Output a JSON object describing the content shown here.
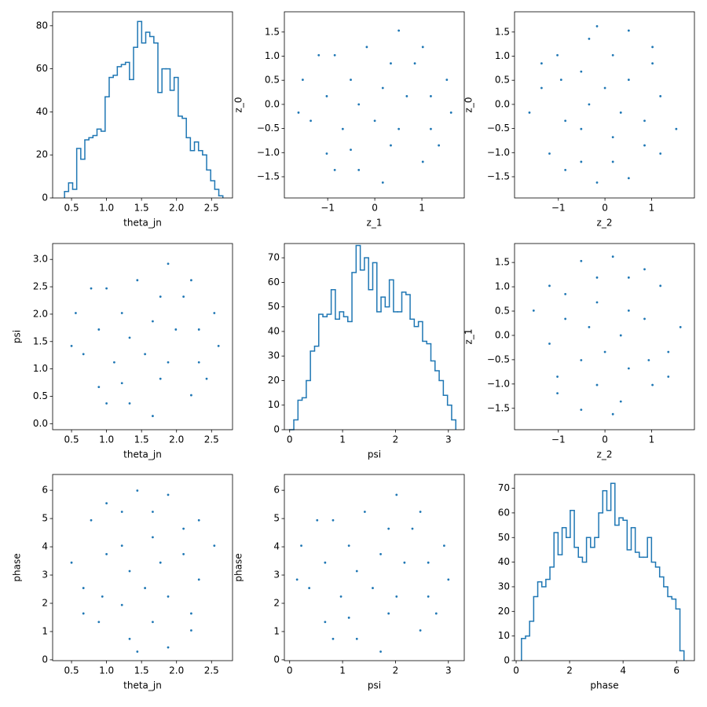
{
  "chart_data": [
    {
      "type": "histogram",
      "xlabel": "theta_jn",
      "color": "#1f77b4",
      "bins": [
        0.4,
        0.458,
        0.516,
        0.574,
        0.632,
        0.69,
        0.748,
        0.806,
        0.864,
        0.922,
        0.98,
        1.038,
        1.096,
        1.154,
        1.212,
        1.27,
        1.328,
        1.386,
        1.444,
        1.502,
        1.56,
        1.618,
        1.676,
        1.734,
        1.792,
        1.85,
        1.908,
        1.966,
        2.024,
        2.082,
        2.14,
        2.198,
        2.256,
        2.314,
        2.372,
        2.43,
        2.488,
        2.546,
        2.604,
        2.662
      ],
      "values": [
        3,
        7,
        4,
        23,
        18,
        27,
        28,
        29,
        32,
        31,
        47,
        56,
        57,
        61,
        62,
        63,
        55,
        70,
        82,
        72,
        77,
        75,
        72,
        49,
        60,
        60,
        50,
        56,
        38,
        37,
        28,
        22,
        26,
        22,
        20,
        13,
        8,
        4,
        1
      ],
      "xlim": [
        0.23,
        2.8
      ],
      "ylim": [
        0,
        86.5
      ],
      "xticks": [
        0.5,
        {
          "value": 1,
          "label": "1.0"
        },
        1.5,
        {
          "value": 2,
          "label": "2.0"
        },
        2.5
      ],
      "yticks": [
        0,
        20,
        40,
        60,
        80
      ]
    },
    {
      "type": "scatter",
      "xlabel": "z_1",
      "ylabel": "z_0",
      "color": "#1f77b4",
      "x": [
        0.17,
        -0.85,
        1.19,
        -0.34,
        1.53,
        -1.36,
        0.51,
        0.85,
        -1.02,
        0.34,
        -0.51,
        1.02,
        -1.53,
        0,
        0.68,
        -0.17,
        1.36,
        -0.68,
        0.17,
        -1.19,
        1.62,
        -1.62,
        0.51,
        -0.34,
        1.02,
        -0.85,
        0.34,
        -1.02,
        1.19,
        -0.51
      ],
      "y": [
        0.34,
        1.02,
        -0.51,
        -1.36,
        0.51,
        -0.34,
        1.53,
        0.85,
        -1.02,
        -0.85,
        0.51,
        -1.19,
        0.51,
        -0.34,
        0.17,
        1.19,
        -0.85,
        -0.51,
        -1.62,
        1.02,
        -0.17,
        -0.17,
        -0.51,
        0,
        1.19,
        -1.36,
        0.85,
        0.17,
        0.17,
        -0.94
      ],
      "xlim": [
        -1.92,
        1.9
      ],
      "ylim": [
        -1.94,
        1.92
      ],
      "xticks": [
        {
          "value": -1,
          "label": "−1"
        },
        0,
        1
      ],
      "yticks": [
        {
          "value": -1.5,
          "label": "−1.5"
        },
        {
          "value": -1,
          "label": "−1.0"
        },
        {
          "value": -0.5,
          "label": "−0.5"
        },
        {
          "value": 0,
          "label": "0.0"
        },
        0.5,
        {
          "value": 1,
          "label": "1.0"
        },
        1.5
      ]
    },
    {
      "type": "scatter",
      "xlabel": "z_2",
      "ylabel": "z_0",
      "color": "#1f77b4",
      "x": [
        0.34,
        1.02,
        -0.51,
        -1.36,
        0.51,
        -0.34,
        1.53,
        0.85,
        -1.02,
        -0.85,
        0.51,
        -1.19,
        0.51,
        -0.34,
        0.17,
        1.19,
        -0.85,
        -0.51,
        -1.62,
        1.02,
        -0.17,
        -0.17,
        -0.51,
        0,
        1.19,
        -1.36,
        0.85,
        0.17,
        0.17,
        -0.94
      ],
      "y": [
        -0.17,
        0.85,
        -1.19,
        0.34,
        -1.53,
        1.36,
        -0.51,
        -0.85,
        1.02,
        -0.34,
        0.51,
        -1.02,
        1.53,
        0,
        -0.68,
        0.17,
        -1.36,
        0.68,
        -0.17,
        1.19,
        -1.62,
        1.62,
        -0.51,
        0.34,
        -1.02,
        0.85,
        -0.34,
        1.02,
        -1.19,
        0.51
      ],
      "xlim": [
        -1.94,
        1.92
      ],
      "ylim": [
        -1.94,
        1.92
      ],
      "xticks": [
        {
          "value": -1,
          "label": "−1"
        },
        0,
        1
      ],
      "yticks": [
        {
          "value": -1.5,
          "label": "−1.5"
        },
        {
          "value": -1,
          "label": "−1.0"
        },
        {
          "value": -0.5,
          "label": "−0.5"
        },
        {
          "value": 0,
          "label": "0.0"
        },
        0.5,
        {
          "value": 1,
          "label": "1.0"
        },
        1.5
      ]
    },
    {
      "type": "scatter",
      "xlabel": "theta_jn",
      "ylabel": "psi",
      "color": "#1f77b4",
      "x": [
        1.66,
        1.0,
        2.32,
        1.33,
        2.54,
        0.67,
        1.88,
        2.1,
        0.89,
        1.77,
        1.22,
        2.21,
        0.56,
        1.55,
        1.99,
        1.44,
        2.43,
        1.11,
        1.66,
        0.78,
        2.6,
        0.5,
        1.88,
        1.33,
        2.21,
        1.0,
        1.77,
        0.89,
        2.32,
        1.22
      ],
      "y": [
        1.87,
        2.47,
        1.12,
        0.37,
        2.02,
        1.27,
        2.92,
        2.32,
        0.67,
        0.82,
        2.02,
        0.52,
        2.02,
        1.27,
        1.72,
        2.62,
        0.82,
        1.12,
        0.14,
        2.47,
        1.42,
        1.42,
        1.12,
        1.57,
        2.62,
        0.37,
        2.32,
        1.72,
        1.72,
        0.74
      ],
      "xlim": [
        0.23,
        2.8
      ],
      "ylim": [
        -0.11,
        3.29
      ],
      "xticks": [
        0.5,
        {
          "value": 1,
          "label": "1.0"
        },
        1.5,
        {
          "value": 2,
          "label": "2.0"
        },
        2.5
      ],
      "yticks": [
        {
          "value": 0,
          "label": "0.0"
        },
        0.5,
        {
          "value": 1,
          "label": "1.0"
        },
        1.5,
        {
          "value": 2,
          "label": "2.0"
        },
        2.5,
        {
          "value": 3,
          "label": "3.0"
        }
      ]
    },
    {
      "type": "histogram",
      "xlabel": "psi",
      "color": "#1f77b4",
      "bins": [
        0,
        0.0785,
        0.157,
        0.2355,
        0.314,
        0.3925,
        0.471,
        0.5495,
        0.628,
        0.7065,
        0.785,
        0.8635,
        0.942,
        1.0205,
        1.099,
        1.1775,
        1.256,
        1.3345,
        1.413,
        1.4915,
        1.57,
        1.6485,
        1.727,
        1.8055,
        1.884,
        1.9625,
        2.041,
        2.1195,
        2.198,
        2.2765,
        2.355,
        2.4335,
        2.512,
        2.5905,
        2.669,
        2.7475,
        2.826,
        2.9045,
        2.983,
        3.0615,
        3.14
      ],
      "values": [
        0,
        4,
        12,
        13,
        20,
        32,
        34,
        47,
        46,
        47,
        57,
        45,
        48,
        46,
        44,
        64,
        75,
        65,
        70,
        57,
        68,
        48,
        54,
        50,
        61,
        48,
        48,
        56,
        55,
        45,
        42,
        44,
        36,
        35,
        28,
        24,
        20,
        14,
        10,
        4
      ],
      "xlim": [
        -0.1,
        3.3
      ],
      "ylim": [
        0,
        75.8
      ],
      "xticks": [
        0,
        1,
        2,
        3
      ],
      "yticks": [
        0,
        10,
        20,
        30,
        40,
        50,
        60,
        70
      ]
    },
    {
      "type": "scatter",
      "xlabel": "z_2",
      "ylabel": "z_1",
      "color": "#1f77b4",
      "x": [
        -0.34,
        -1.02,
        0.51,
        1.36,
        -0.51,
        0.34,
        -1.53,
        -0.85,
        1.02,
        0.85,
        -0.51,
        1.19,
        -0.51,
        0.34,
        -0.17,
        -1.19,
        0.85,
        0.51,
        1.62,
        -1.02,
        0.17,
        0.17,
        0.51,
        0,
        -1.19,
        1.36,
        -0.85,
        -0.17,
        -0.17,
        0.94
      ],
      "y": [
        0.17,
        -0.85,
        1.19,
        -0.34,
        1.53,
        -1.36,
        0.51,
        0.85,
        -1.02,
        0.34,
        -0.51,
        1.02,
        -1.53,
        0,
        0.68,
        -0.17,
        1.36,
        -0.68,
        0.17,
        -1.19,
        1.62,
        -1.62,
        0.51,
        -0.34,
        1.02,
        -0.85,
        0.34,
        -1.02,
        1.19,
        -0.51
      ],
      "xlim": [
        -1.94,
        1.92
      ],
      "ylim": [
        -1.94,
        1.89
      ],
      "xticks": [
        {
          "value": -1,
          "label": "−1"
        },
        0,
        1
      ],
      "yticks": [
        {
          "value": -1.5,
          "label": "−1.5"
        },
        {
          "value": -1,
          "label": "−1.0"
        },
        {
          "value": -0.5,
          "label": "−0.5"
        },
        {
          "value": 0,
          "label": "0.0"
        },
        0.5,
        {
          "value": 1,
          "label": "1.0"
        },
        1.5
      ]
    },
    {
      "type": "scatter",
      "xlabel": "theta_jn",
      "ylabel": "phase",
      "color": "#1f77b4",
      "x": [
        1.77,
        2.21,
        1.22,
        0.67,
        1.88,
        1.33,
        2.54,
        2.1,
        0.89,
        1.0,
        1.88,
        0.78,
        1.88,
        1.33,
        1.66,
        2.32,
        1.0,
        1.22,
        0.5,
        2.21,
        1.44,
        1.44,
        1.22,
        1.55,
        2.32,
        0.67,
        2.1,
        1.66,
        1.66,
        0.94
      ],
      "y": [
        3.44,
        1.64,
        5.24,
        2.54,
        5.84,
        0.74,
        4.04,
        4.64,
        1.34,
        3.74,
        2.24,
        4.94,
        0.44,
        3.14,
        4.34,
        2.84,
        5.54,
        1.94,
        3.44,
        1.04,
        5.99,
        0.29,
        4.04,
        2.54,
        4.94,
        1.64,
        3.74,
        1.34,
        5.24,
        2.24
      ],
      "xlim": [
        0.23,
        2.8
      ],
      "ylim": [
        -0.03,
        6.56
      ],
      "xticks": [
        0.5,
        {
          "value": 1,
          "label": "1.0"
        },
        1.5,
        {
          "value": 2,
          "label": "2.0"
        },
        2.5
      ],
      "yticks": [
        0,
        1,
        2,
        3,
        4,
        5,
        6
      ]
    },
    {
      "type": "scatter",
      "xlabel": "psi",
      "ylabel": "phase",
      "color": "#1f77b4",
      "x": [
        1.72,
        0.82,
        2.62,
        1.27,
        2.92,
        0.37,
        2.02,
        2.32,
        0.67,
        1.87,
        1.12,
        2.47,
        0.22,
        1.57,
        2.17,
        1.42,
        2.77,
        0.97,
        1.72,
        0.52,
        3.0,
        0.14,
        2.02,
        1.27,
        2.47,
        0.82,
        1.87,
        0.67,
        2.62,
        1.12
      ],
      "y": [
        3.74,
        4.94,
        2.24,
        0.74,
        4.04,
        2.54,
        5.84,
        4.64,
        1.34,
        1.64,
        4.04,
        1.04,
        4.04,
        2.54,
        3.44,
        5.24,
        1.64,
        2.24,
        0.29,
        4.94,
        2.84,
        2.84,
        2.24,
        3.14,
        5.24,
        0.74,
        4.64,
        3.44,
        3.44,
        1.49
      ],
      "xlim": [
        -0.1,
        3.3
      ],
      "ylim": [
        -0.03,
        6.56
      ],
      "xticks": [
        0,
        1,
        2,
        3
      ],
      "yticks": [
        0,
        1,
        2,
        3,
        4,
        5,
        6
      ]
    },
    {
      "type": "histogram",
      "xlabel": "phase",
      "color": "#1f77b4",
      "bins": [
        0.2,
        0.352,
        0.504,
        0.656,
        0.808,
        0.96,
        1.112,
        1.264,
        1.416,
        1.568,
        1.72,
        1.872,
        2.024,
        2.176,
        2.328,
        2.48,
        2.632,
        2.784,
        2.936,
        3.088,
        3.24,
        3.392,
        3.544,
        3.696,
        3.848,
        4.0,
        4.152,
        4.304,
        4.456,
        4.608,
        4.76,
        4.912,
        5.064,
        5.216,
        5.368,
        5.52,
        5.672,
        5.824,
        5.976,
        6.128,
        6.28
      ],
      "values": [
        9,
        10,
        16,
        26,
        32,
        30,
        33,
        38,
        52,
        43,
        54,
        50,
        61,
        46,
        42,
        40,
        50,
        46,
        50,
        60,
        69,
        61,
        72,
        55,
        58,
        57,
        45,
        54,
        44,
        42,
        42,
        50,
        40,
        38,
        34,
        30,
        26,
        25,
        21,
        4
      ],
      "xlim": [
        -0.06,
        6.67
      ],
      "ylim": [
        0,
        75.6
      ],
      "xticks": [
        0,
        2,
        4,
        6
      ],
      "yticks": [
        0,
        10,
        20,
        30,
        40,
        50,
        60,
        70
      ]
    }
  ]
}
